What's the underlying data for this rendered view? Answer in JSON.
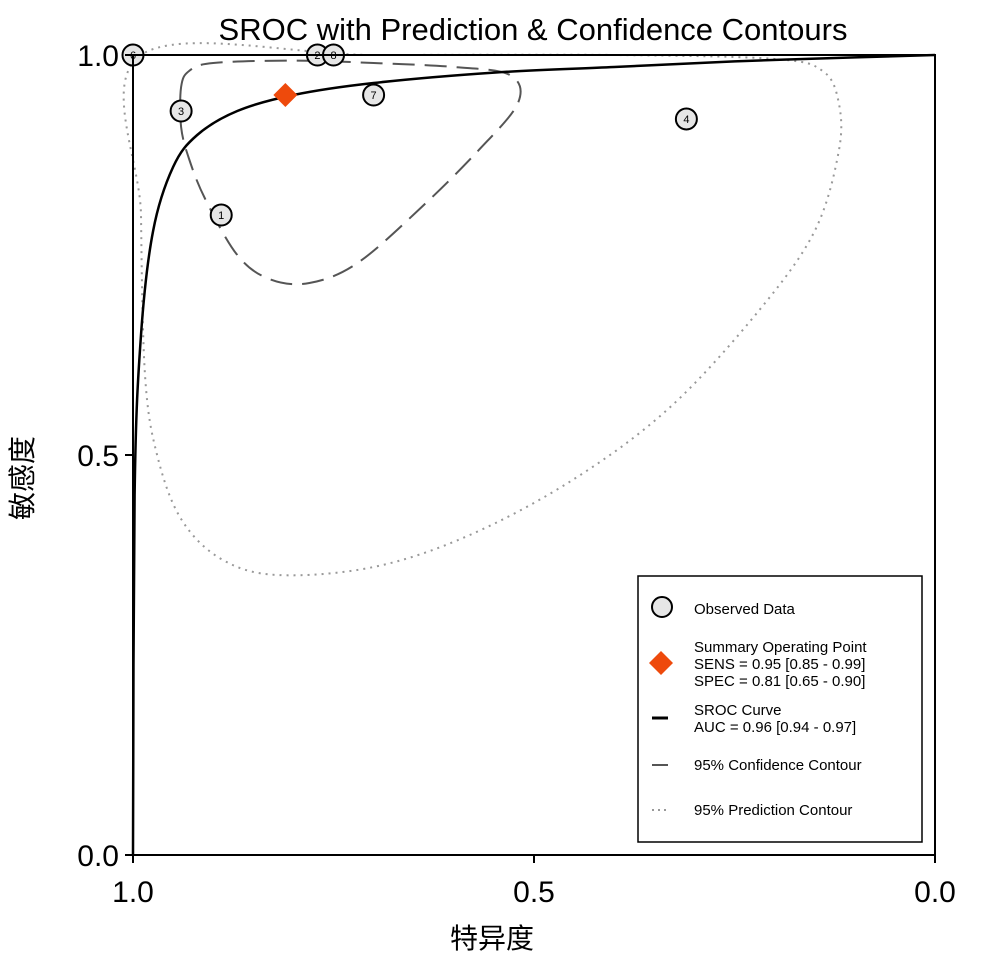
{
  "chart_data": {
    "type": "scatter",
    "title": "SROC with Prediction & Confidence Contours",
    "xlabel": "特异度",
    "ylabel": "敏感度",
    "xlim": [
      1.0,
      0.0
    ],
    "ylim": [
      0.0,
      1.0
    ],
    "x_ticks": [
      "1.0",
      "0.5",
      "0.0"
    ],
    "y_ticks": [
      "0.0",
      "0.5",
      "1.0"
    ],
    "grid": false,
    "observed_points": [
      {
        "label": "1",
        "specificity": 0.89,
        "sensitivity": 0.8
      },
      {
        "label": "2",
        "specificity": 0.77,
        "sensitivity": 1.0
      },
      {
        "label": "3",
        "specificity": 0.94,
        "sensitivity": 0.93
      },
      {
        "label": "4",
        "specificity": 0.31,
        "sensitivity": 0.92
      },
      {
        "label": "6",
        "specificity": 1.0,
        "sensitivity": 1.0
      },
      {
        "label": "7",
        "specificity": 0.7,
        "sensitivity": 0.95
      },
      {
        "label": "8",
        "specificity": 0.75,
        "sensitivity": 1.0
      }
    ],
    "summary_point": {
      "specificity": 0.81,
      "sensitivity": 0.95
    },
    "sroc_curve": [
      {
        "specificity": 1.0,
        "sensitivity": 0.0
      },
      {
        "specificity": 0.998,
        "sensitivity": 0.45
      },
      {
        "specificity": 0.99,
        "sensitivity": 0.65
      },
      {
        "specificity": 0.975,
        "sensitivity": 0.78
      },
      {
        "specificity": 0.95,
        "sensitivity": 0.86
      },
      {
        "specificity": 0.92,
        "sensitivity": 0.9
      },
      {
        "specificity": 0.87,
        "sensitivity": 0.93
      },
      {
        "specificity": 0.8,
        "sensitivity": 0.95
      },
      {
        "specificity": 0.7,
        "sensitivity": 0.965
      },
      {
        "specificity": 0.55,
        "sensitivity": 0.978
      },
      {
        "specificity": 0.4,
        "sensitivity": 0.985
      },
      {
        "specificity": 0.25,
        "sensitivity": 0.992
      },
      {
        "specificity": 0.1,
        "sensitivity": 0.997
      },
      {
        "specificity": 0.0,
        "sensitivity": 1.0
      }
    ],
    "confidence_contour": [
      {
        "specificity": 0.94,
        "sensitivity": 0.96
      },
      {
        "specificity": 0.93,
        "sensitivity": 0.98
      },
      {
        "specificity": 0.9,
        "sensitivity": 0.99
      },
      {
        "specificity": 0.8,
        "sensitivity": 0.993
      },
      {
        "specificity": 0.7,
        "sensitivity": 0.99
      },
      {
        "specificity": 0.6,
        "sensitivity": 0.985
      },
      {
        "specificity": 0.53,
        "sensitivity": 0.975
      },
      {
        "specificity": 0.52,
        "sensitivity": 0.94
      },
      {
        "specificity": 0.57,
        "sensitivity": 0.88
      },
      {
        "specificity": 0.64,
        "sensitivity": 0.81
      },
      {
        "specificity": 0.72,
        "sensitivity": 0.74
      },
      {
        "specificity": 0.78,
        "sensitivity": 0.715
      },
      {
        "specificity": 0.83,
        "sensitivity": 0.72
      },
      {
        "specificity": 0.87,
        "sensitivity": 0.75
      },
      {
        "specificity": 0.91,
        "sensitivity": 0.82
      },
      {
        "specificity": 0.93,
        "sensitivity": 0.87
      },
      {
        "specificity": 0.94,
        "sensitivity": 0.91
      },
      {
        "specificity": 0.94,
        "sensitivity": 0.96
      }
    ],
    "prediction_contour": [
      {
        "specificity": 0.99,
        "sensitivity": 1.0
      },
      {
        "specificity": 0.99,
        "sensitivity": 0.8
      },
      {
        "specificity": 0.985,
        "sensitivity": 0.6
      },
      {
        "specificity": 0.97,
        "sensitivity": 0.5
      },
      {
        "specificity": 0.94,
        "sensitivity": 0.42
      },
      {
        "specificity": 0.89,
        "sensitivity": 0.37
      },
      {
        "specificity": 0.82,
        "sensitivity": 0.35
      },
      {
        "specificity": 0.7,
        "sensitivity": 0.36
      },
      {
        "specificity": 0.58,
        "sensitivity": 0.4
      },
      {
        "specificity": 0.45,
        "sensitivity": 0.47
      },
      {
        "specificity": 0.33,
        "sensitivity": 0.56
      },
      {
        "specificity": 0.22,
        "sensitivity": 0.68
      },
      {
        "specificity": 0.15,
        "sensitivity": 0.78
      },
      {
        "specificity": 0.12,
        "sensitivity": 0.88
      },
      {
        "specificity": 0.12,
        "sensitivity": 0.94
      },
      {
        "specificity": 0.14,
        "sensitivity": 0.98
      },
      {
        "specificity": 0.2,
        "sensitivity": 0.995
      },
      {
        "specificity": 0.4,
        "sensitivity": 1.0
      },
      {
        "specificity": 0.7,
        "sensitivity": 1.0
      },
      {
        "specificity": 0.99,
        "sensitivity": 1.0
      }
    ],
    "legend": {
      "placement": "bottom-right",
      "observed": "Observed Data",
      "summary_title": "Summary Operating Point",
      "summary_sens": "SENS = 0.95 [0.85 - 0.99]",
      "summary_spec": "SPEC = 0.81 [0.65 - 0.90]",
      "sroc_title": "SROC Curve",
      "sroc_auc": "AUC = 0.96 [0.94 - 0.97]",
      "confidence": "95% Confidence Contour",
      "prediction": "95% Prediction Contour"
    },
    "colors": {
      "summary_point": "#ee4a0c",
      "point_fill": "#e6e6e6",
      "curve": "#000000",
      "confidence": "#555555",
      "prediction": "#999999"
    }
  }
}
